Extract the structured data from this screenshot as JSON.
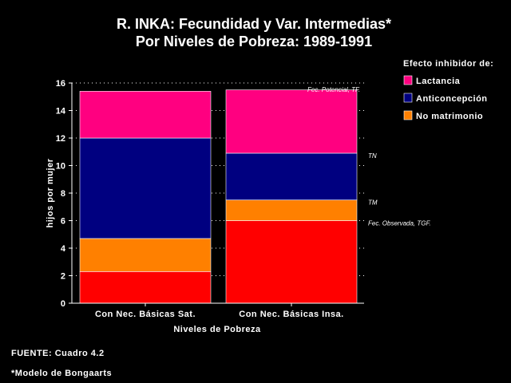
{
  "chart_data": {
    "type": "bar",
    "stacked": true,
    "title": "R. INKA: Fecundidad y Var. Intermedias*",
    "subtitle": "Por Niveles de Pobreza:  1989-1991",
    "xlabel": "Niveles de Pobreza",
    "ylabel": "hijos por mujer",
    "ylim": [
      0,
      16
    ],
    "yticks": [
      0,
      2,
      4,
      6,
      8,
      10,
      12,
      14,
      16
    ],
    "categories": [
      "Con Nec. Básicas Sat.",
      "Con Nec. Básicas Insa."
    ],
    "series": [
      {
        "name": "TGF",
        "color": "#ff0000",
        "values": [
          2.3,
          6.0
        ]
      },
      {
        "name": "No matrimonio",
        "color": "#ff8000",
        "values": [
          2.4,
          1.5
        ]
      },
      {
        "name": "Anticoncepción",
        "color": "#000080",
        "values": [
          7.3,
          3.4
        ]
      },
      {
        "name": "Lactancia",
        "color": "#ff0080",
        "values": [
          3.4,
          4.6
        ]
      }
    ],
    "legend": {
      "title": "Efecto inhibidor de:",
      "position": "top-right",
      "items": [
        {
          "label": "Lactancia",
          "color": "#ff0080"
        },
        {
          "label": "Anticoncepción",
          "color": "#000080"
        },
        {
          "label": "No matrimonio",
          "color": "#ff8000"
        }
      ]
    },
    "annotations": [
      {
        "text": "Fec. Potencial, TF.",
        "y": 15.6
      },
      {
        "text": "TN",
        "y": 10.9
      },
      {
        "text": "TM",
        "y": 7.5
      },
      {
        "text": "Fec. Observada, TGF.",
        "y": 6.0
      }
    ],
    "grid": "dotted horizontal"
  },
  "footer": {
    "source": "FUENTE: Cuadro 4.2",
    "note": "*Modelo de Bongaarts"
  }
}
